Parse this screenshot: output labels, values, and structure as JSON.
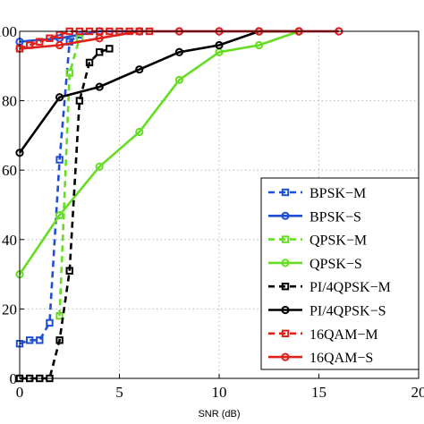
{
  "chart_data": {
    "type": "line",
    "title": "",
    "xlabel": "SNR (dB)",
    "ylabel": "",
    "xlim": [
      0,
      20
    ],
    "ylim": [
      0,
      100
    ],
    "grid": true,
    "legend_position": "bottom-right",
    "x_ticks": [
      "0",
      "5",
      "10",
      "15",
      "20"
    ],
    "y_ticks": [
      "0",
      "20",
      "40",
      "60",
      "80",
      "100"
    ],
    "series": [
      {
        "name": "BPSK−M",
        "color": "#1f4fd6",
        "style": "dashed",
        "marker": "square",
        "x": [
          0,
          0.5,
          1,
          1.5,
          2,
          2.5,
          3
        ],
        "y": [
          10,
          11,
          11,
          16,
          63,
          97,
          99
        ]
      },
      {
        "name": "BPSK−S",
        "color": "#1f4fd6",
        "style": "solid",
        "marker": "circle",
        "x": [
          0,
          2,
          4,
          6,
          8,
          10,
          12,
          14,
          16
        ],
        "y": [
          97,
          98,
          100,
          100,
          100,
          100,
          100,
          100,
          100
        ]
      },
      {
        "name": "QPSK−M",
        "color": "#66dd22",
        "style": "dashed",
        "marker": "square",
        "x": [
          2,
          2.5,
          3
        ],
        "y": [
          18,
          88,
          98
        ]
      },
      {
        "name": "QPSK−S",
        "color": "#66dd22",
        "style": "solid",
        "marker": "circle",
        "x": [
          0,
          2,
          4,
          6,
          8,
          10,
          12,
          14
        ],
        "y": [
          30,
          47,
          61,
          71,
          86,
          94,
          96,
          100
        ]
      },
      {
        "name": "PI/4QPSK−M",
        "color": "#000000",
        "style": "dashed",
        "marker": "square",
        "x": [
          0,
          0.5,
          1,
          1.5,
          2,
          2.5,
          3,
          3.5,
          4,
          4.5
        ],
        "y": [
          0,
          0,
          0,
          0,
          11,
          31,
          80,
          91,
          94,
          95
        ]
      },
      {
        "name": "PI/4QPSK−S",
        "color": "#000000",
        "style": "solid",
        "marker": "circle",
        "x": [
          0,
          2,
          4,
          6,
          8,
          10,
          12,
          14
        ],
        "y": [
          65,
          81,
          84,
          89,
          94,
          96,
          100,
          100
        ]
      },
      {
        "name": "16QAM−M",
        "color": "#e0201b",
        "style": "dashed",
        "marker": "square",
        "x": [
          0,
          0.5,
          1,
          1.5,
          2,
          2.5,
          3,
          3.5,
          4,
          4.5,
          5,
          5.5,
          6,
          6.5
        ],
        "y": [
          95,
          96,
          97,
          98,
          99,
          100,
          100,
          100,
          100,
          100,
          100,
          100,
          100,
          100
        ]
      },
      {
        "name": "16QAM−S",
        "color": "#e0201b",
        "style": "solid",
        "marker": "circle",
        "x": [
          0,
          2,
          4,
          6,
          8,
          10,
          12,
          14,
          16
        ],
        "y": [
          95,
          96,
          98,
          100,
          100,
          100,
          100,
          100,
          100
        ]
      }
    ]
  }
}
